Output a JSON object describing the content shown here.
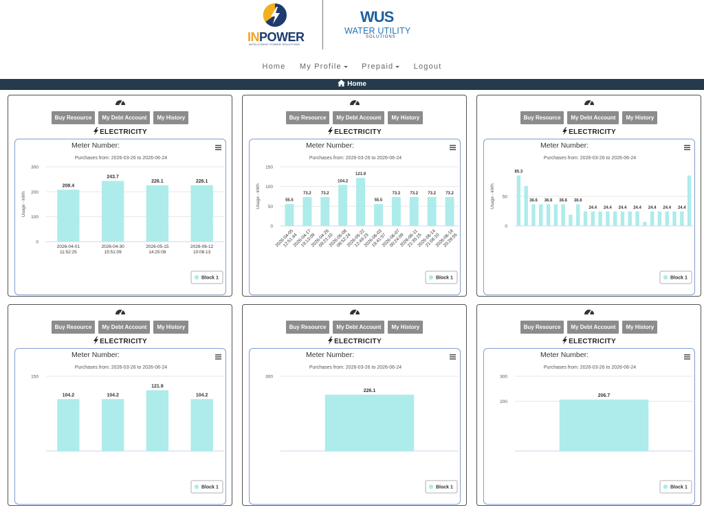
{
  "header": {
    "brand_left": {
      "name_parts": [
        "IN",
        "POWER"
      ],
      "tagline": "INTELLIGENT POWER SOLUTIONS"
    },
    "brand_right": {
      "mark": "WUS",
      "name": "WATER UTILITY",
      "tagline": "SOLUTIONS"
    }
  },
  "nav": [
    "Home",
    "My Profile",
    "Prepaid",
    "Logout"
  ],
  "breadcrumb": "Home",
  "cards": [
    {
      "buttons": [
        "Buy Resource",
        "My Debt Account",
        "My History"
      ],
      "resource": "ELECTRICITY",
      "chart_data": {
        "type": "bar",
        "title": "Meter Number:",
        "subtitle": "Purchases from: 2026-03-26 to 2026-06-24",
        "y_axis_title": "Usage - kWh",
        "categories": [
          "2026-04-01 11:52:25",
          "2026-04-30 15:51:09",
          "2026-05-15 14:25:08",
          "2026-06-12 10:06:13"
        ],
        "series": [
          {
            "name": "Block 1",
            "color": "#adeceb",
            "values": [
              208.4,
              243.7,
              226.1,
              226.1
            ]
          }
        ],
        "ylim": [
          0,
          300
        ],
        "yticks": [
          0,
          100,
          200,
          300
        ],
        "grid": true
      }
    },
    {
      "buttons": [
        "Buy Resource",
        "My Debt Account",
        "My History"
      ],
      "resource": "ELECTRICITY",
      "chart_data": {
        "type": "bar",
        "title": "Meter Number:",
        "subtitle": "Purchases from: 2026-03-26 to 2026-06-24",
        "y_axis_title": "Usage - kWh",
        "categories": [
          "2026-04-05 12:51:44",
          "2026-04-17 19:13:09",
          "2026-04-26 09:21:10",
          "2026-05-08 08:52:24",
          "2026-05-22 12:49:23",
          "2026-06-03 18:41:57",
          "2026-06-07 00:24:09",
          "2026-06-11 21:35:15",
          "2026-06-14 21:06:10",
          "2026-06-18 20:28:55"
        ],
        "series": [
          {
            "name": "Block 1",
            "color": "#adeceb",
            "values": [
              55.5,
              73.2,
              73.2,
              104.2,
              121.9,
              55.5,
              73.2,
              73.2,
              73.2,
              73.2
            ]
          }
        ],
        "ylim": [
          0,
          150
        ],
        "yticks": [
          0,
          50,
          100,
          150
        ],
        "grid": true
      }
    },
    {
      "buttons": [
        "Buy Resource",
        "My Debt Account",
        "My History"
      ],
      "resource": "ELECTRICITY",
      "chart_data": {
        "type": "bar",
        "title": "Meter Number:",
        "subtitle": "Purchases from: 2026-03-26 to 2026-06-24",
        "y_axis_title": "Usage - kWh",
        "categories": [
          null,
          null,
          null,
          null,
          null,
          null,
          null,
          null,
          null,
          null,
          null,
          null,
          null,
          null,
          null,
          null,
          null,
          null,
          null,
          null,
          null,
          null,
          null,
          null
        ],
        "series": [
          {
            "name": "Block 1",
            "color": "#adeceb",
            "values": [
              85.3,
              67.7,
              36.6,
              36.6,
              36.6,
              36.6,
              36.6,
              18.9,
              36.6,
              24.4,
              24.4,
              24.4,
              24.4,
              24.4,
              24.4,
              24.4,
              24.4,
              6.7,
              24.4,
              24.4,
              24.4,
              24.4,
              24.4,
              85.3
            ]
          }
        ],
        "ylim": [
          0,
          100
        ],
        "yticks": [
          0,
          50
        ],
        "grid": true
      }
    },
    {
      "buttons": [
        "Buy Resource",
        "My Debt Account",
        "My History"
      ],
      "resource": "ELECTRICITY",
      "chart_data": {
        "type": "bar",
        "title": "Meter Number:",
        "subtitle": "Purchases from: 2026-03-26 to 2026-06-24",
        "categories": [
          null,
          null,
          null,
          null
        ],
        "series": [
          {
            "name": "Block 1",
            "color": "#adeceb",
            "values": [
              104.2,
              104.2,
              121.9,
              104.2
            ]
          }
        ],
        "ylim": [
          0,
          150
        ],
        "yticks": [
          150
        ],
        "grid": true
      }
    },
    {
      "buttons": [
        "Buy Resource",
        "My Debt Account",
        "My History"
      ],
      "resource": "ELECTRICITY",
      "chart_data": {
        "type": "bar",
        "title": "Meter Number:",
        "subtitle": "Purchases from: 2026-03-26 to 2026-06-24",
        "categories": [
          null
        ],
        "series": [
          {
            "name": "Block 1",
            "color": "#adeceb",
            "values": [
              226.1
            ]
          }
        ],
        "ylim": [
          0,
          300
        ],
        "yticks": [
          300
        ],
        "grid": true
      }
    },
    {
      "buttons": [
        "Buy Resource",
        "My Debt Account",
        "My History"
      ],
      "resource": "ELECTRICITY",
      "chart_data": {
        "type": "bar",
        "title": "Meter Number:",
        "subtitle": "Purchases from: 2026-03-26 to 2026-06-24",
        "categories": [
          null
        ],
        "series": [
          {
            "name": "Block 1",
            "color": "#adeceb",
            "values": [
              206.7
            ]
          }
        ],
        "ylim": [
          0,
          300
        ],
        "yticks": [
          200,
          300
        ],
        "grid": true
      }
    }
  ]
}
